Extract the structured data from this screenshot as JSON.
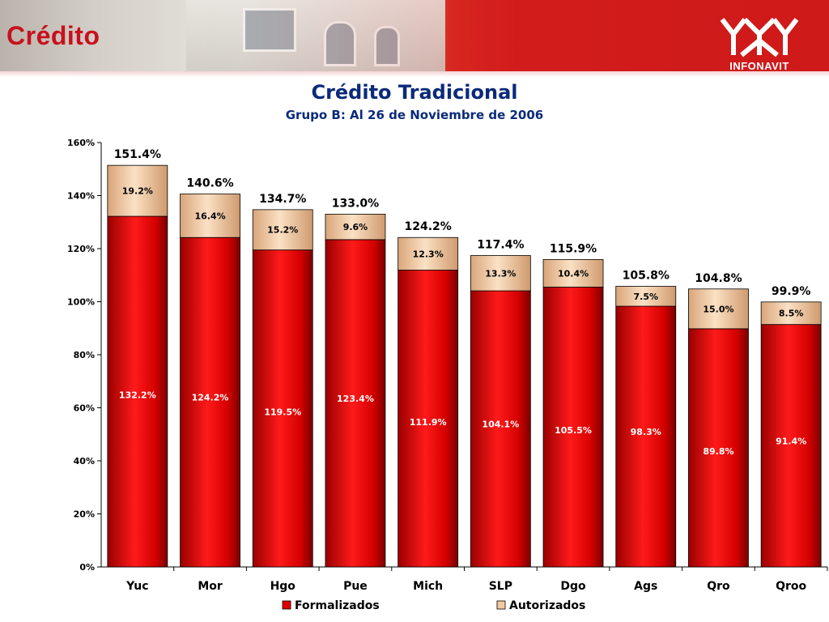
{
  "header": {
    "title": "Crédito",
    "logo_text": "INFONAVIT"
  },
  "colors": {
    "formalizados": "#e00000",
    "autorizados": "#f3c9a0",
    "title": "#0b2a7a",
    "brand": "#c8101e"
  },
  "chart_data": {
    "type": "bar",
    "stacked": true,
    "title": "Crédito Tradicional",
    "subtitle": "Grupo B: Al 26 de Noviembre de 2006",
    "categories": [
      "Yuc",
      "Mor",
      "Hgo",
      "Pue",
      "Mich",
      "SLP",
      "Dgo",
      "Ags",
      "Qro",
      "Qroo"
    ],
    "series": [
      {
        "name": "Formalizados",
        "values": [
          132.2,
          124.2,
          119.5,
          123.4,
          111.9,
          104.1,
          105.5,
          98.3,
          89.8,
          91.4
        ],
        "labels": [
          "132.2%",
          "124.2%",
          "119.5%",
          "123.4%",
          "111.9%",
          "104.1%",
          "105.5%",
          "98.3%",
          "89.8%",
          "91.4%"
        ]
      },
      {
        "name": "Autorizados",
        "values": [
          19.2,
          16.4,
          15.2,
          9.6,
          12.3,
          13.3,
          10.4,
          7.5,
          15.0,
          8.5
        ],
        "labels": [
          "19.2%",
          "16.4%",
          "15.2%",
          "9.6%",
          "12.3%",
          "13.3%",
          "10.4%",
          "7.5%",
          "15.0%",
          "8.5%"
        ]
      }
    ],
    "totals": [
      151.4,
      140.6,
      134.7,
      133.0,
      124.2,
      117.4,
      115.9,
      105.8,
      104.8,
      99.9
    ],
    "total_labels": [
      "151.4%",
      "140.6%",
      "134.7%",
      "133.0%",
      "124.2%",
      "117.4%",
      "115.9%",
      "105.8%",
      "104.8%",
      "99.9%"
    ],
    "ylim": [
      0,
      160
    ],
    "yticks": [
      "0%",
      "20%",
      "40%",
      "60%",
      "80%",
      "100%",
      "120%",
      "140%",
      "160%"
    ],
    "legend_position": "bottom",
    "grid": false
  }
}
